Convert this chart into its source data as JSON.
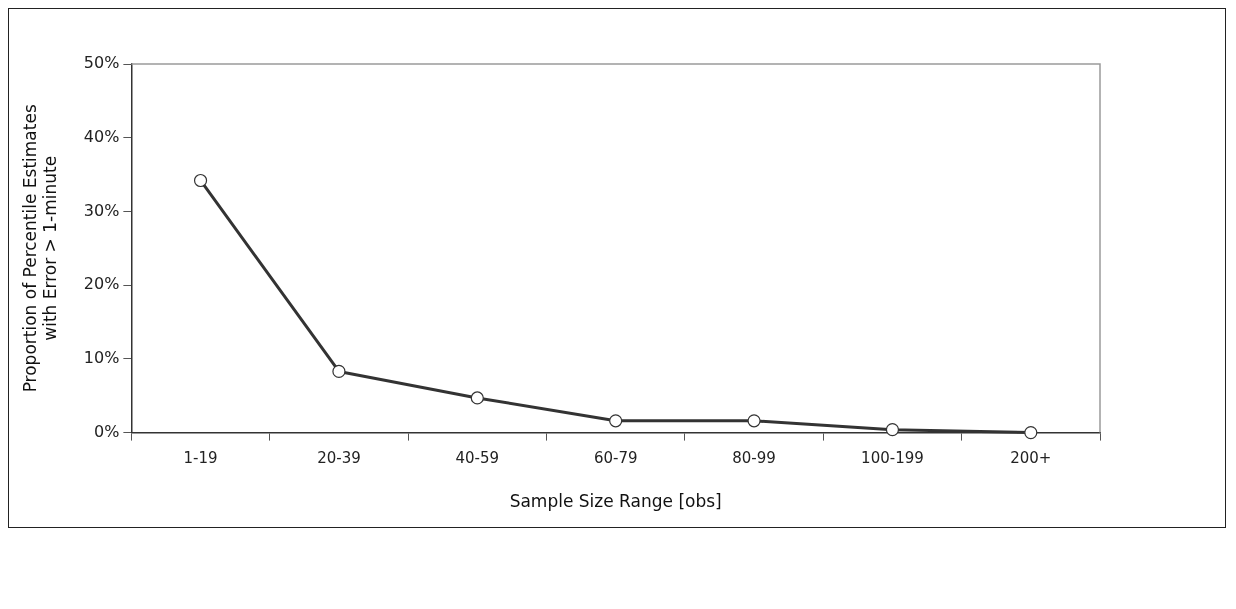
{
  "chart_data": {
    "type": "line",
    "xlabel": "Sample Size Range [obs]",
    "ylabel": "Proportion of Percentile Estimates\nwith Error > 1-minute",
    "categories": [
      "1-19",
      "20-39",
      "40-59",
      "60-79",
      "80-99",
      "100-199",
      "200+"
    ],
    "series": [
      {
        "color": "#333333",
        "values": [
          34.2,
          8.3,
          4.7,
          1.6,
          1.6,
          0.4,
          0.0
        ]
      }
    ],
    "ylim": [
      0,
      50
    ],
    "yticks": [
      {
        "value": 0,
        "label": "0%"
      },
      {
        "value": 10,
        "label": "10%"
      },
      {
        "value": 20,
        "label": "20%"
      },
      {
        "value": 30,
        "label": "30%"
      },
      {
        "value": 40,
        "label": "40%"
      },
      {
        "value": 50,
        "label": "50%"
      }
    ],
    "grid": false,
    "legend": false,
    "marker": "circle",
    "line_style": "solid"
  }
}
